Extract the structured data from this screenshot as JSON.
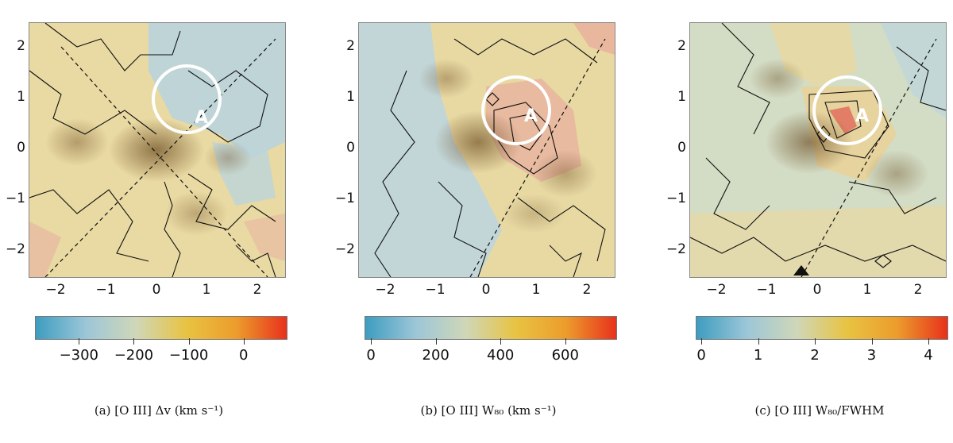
{
  "figure": {
    "panels": [
      {
        "id": "a",
        "caption": "(a) [O III] Δv (km s⁻¹)",
        "region_label": "A",
        "colorbar": {
          "min": -380,
          "max": 80,
          "ticks": [
            {
              "value": -300,
              "label": "−300"
            },
            {
              "value": -200,
              "label": "−200"
            },
            {
              "value": -100,
              "label": "−100"
            },
            {
              "value": 0,
              "label": "0"
            }
          ]
        }
      },
      {
        "id": "b",
        "caption": "(b) [O III] W₈₀ (km s⁻¹)",
        "region_label": "A",
        "colorbar": {
          "min": -20,
          "max": 760,
          "ticks": [
            {
              "value": 0,
              "label": "0"
            },
            {
              "value": 200,
              "label": "200"
            },
            {
              "value": 400,
              "label": "400"
            },
            {
              "value": 600,
              "label": "600"
            }
          ]
        }
      },
      {
        "id": "c",
        "caption": "(c) [O III] W₈₀/FWHM",
        "region_label": "A",
        "colorbar": {
          "min": -0.1,
          "max": 4.35,
          "ticks": [
            {
              "value": 0,
              "label": "0"
            },
            {
              "value": 1,
              "label": "1"
            },
            {
              "value": 2,
              "label": "2"
            },
            {
              "value": 3,
              "label": "3"
            },
            {
              "value": 4,
              "label": "4"
            }
          ]
        }
      }
    ],
    "axes": {
      "xticks": [
        "−2",
        "−1",
        "0",
        "1",
        "2"
      ],
      "yticks": [
        "2",
        "1",
        "0",
        "−1",
        "−2"
      ]
    },
    "colors": {
      "cbar_stops": [
        "#3d9dc0",
        "#9cc6d8",
        "#cfd7b8",
        "#e8c342",
        "#ec9c2c",
        "#e8311c"
      ],
      "map_yellow": "#ead9a0",
      "map_blue": "#b8d2dc",
      "map_red": "#e8a89a"
    }
  }
}
